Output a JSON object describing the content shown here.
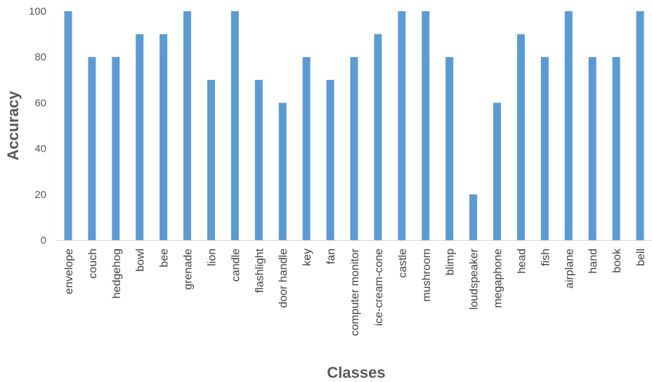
{
  "chart_data": {
    "type": "bar",
    "title": "",
    "xlabel": "Classes",
    "ylabel": "Accuracy",
    "ylim": [
      0,
      100
    ],
    "yticks": [
      "0",
      "20",
      "40",
      "60",
      "80",
      "100"
    ],
    "grid": false,
    "legend": "none",
    "bar_color": "#5B9BD5",
    "axis_color": "#D9D9D9",
    "categories": [
      "envelope",
      "couch",
      "hedgehog",
      "bowl",
      "bee",
      "grenade",
      "lion",
      "candle",
      "flashlight",
      "door handle",
      "key",
      "fan",
      "computer monitor",
      "ice-cream-cone",
      "castle",
      "mushroom",
      "blimp",
      "loudspeaker",
      "megaphone",
      "head",
      "fish",
      "airplane",
      "hand",
      "book",
      "bell"
    ],
    "values": [
      100,
      80,
      80,
      90,
      90,
      100,
      70,
      100,
      70,
      60,
      80,
      70,
      80,
      90,
      100,
      100,
      80,
      20,
      60,
      90,
      80,
      100,
      80,
      80,
      100
    ]
  }
}
